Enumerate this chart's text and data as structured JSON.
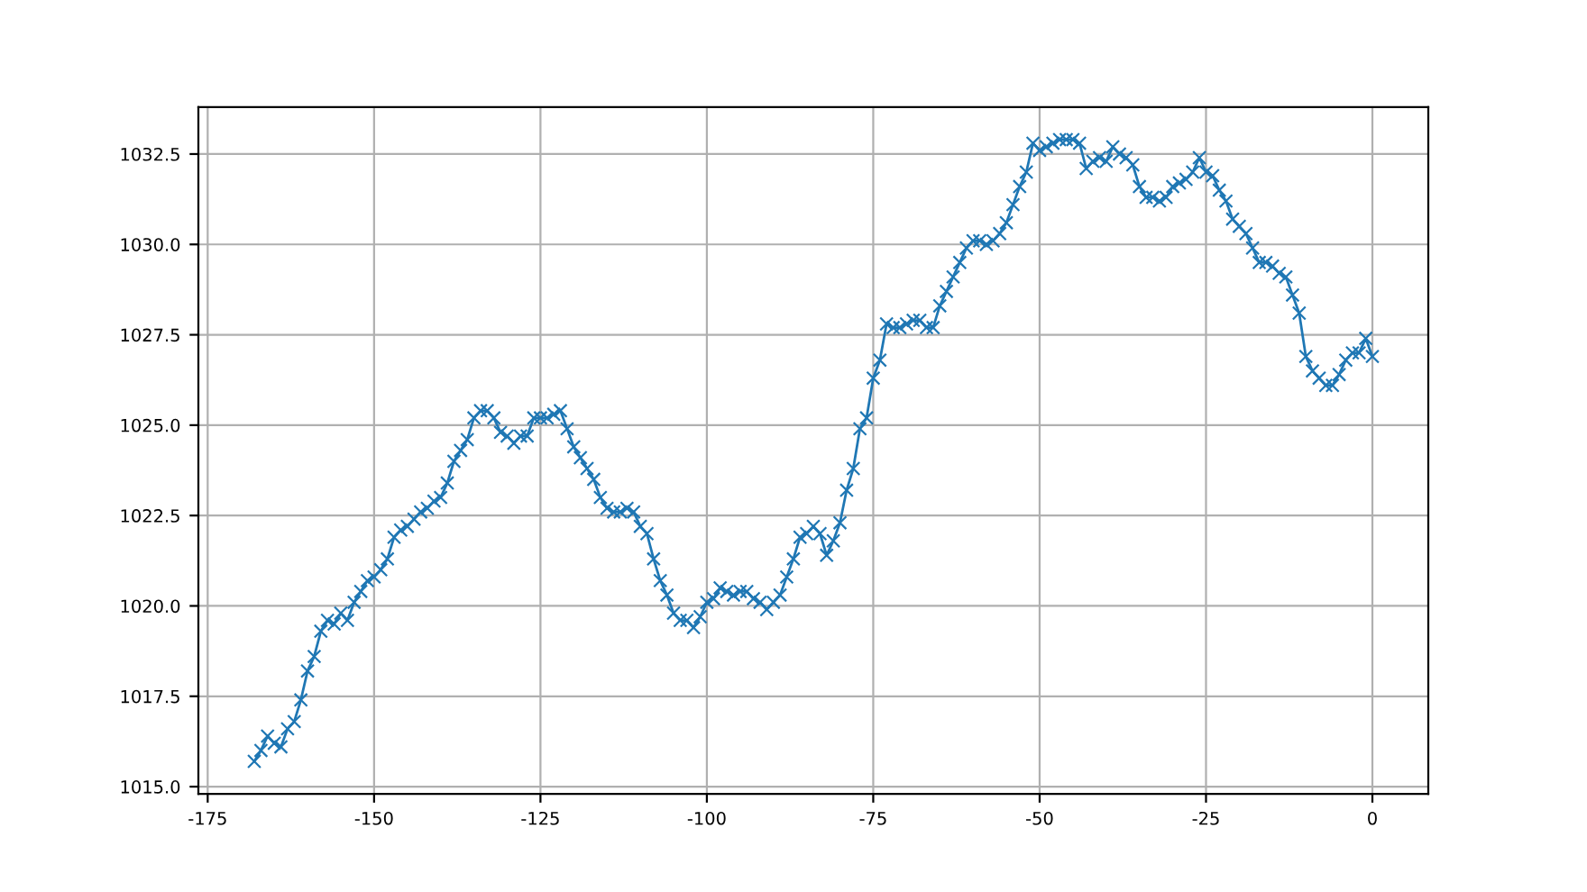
{
  "chart_data": {
    "type": "line",
    "marker": "cross",
    "grid": true,
    "x": [
      -168,
      -167,
      -166,
      -165,
      -164,
      -163,
      -162,
      -161,
      -160,
      -159,
      -158,
      -157,
      -156,
      -155,
      -154,
      -153,
      -152,
      -151,
      -150,
      -149,
      -148,
      -147,
      -146,
      -145,
      -144,
      -143,
      -142,
      -141,
      -140,
      -139,
      -138,
      -137,
      -136,
      -135,
      -134,
      -133,
      -132,
      -131,
      -130,
      -129,
      -128,
      -127,
      -126,
      -125,
      -124,
      -123,
      -122,
      -121,
      -120,
      -119,
      -118,
      -117,
      -116,
      -115,
      -114,
      -113,
      -112,
      -111,
      -110,
      -109,
      -108,
      -107,
      -106,
      -105,
      -104,
      -103,
      -102,
      -101,
      -100,
      -99,
      -98,
      -97,
      -96,
      -95,
      -94,
      -93,
      -92,
      -91,
      -90,
      -89,
      -88,
      -87,
      -86,
      -85,
      -84,
      -83,
      -82,
      -81,
      -80,
      -79,
      -78,
      -77,
      -76,
      -75,
      -74,
      -73,
      -72,
      -71,
      -70,
      -69,
      -68,
      -67,
      -66,
      -65,
      -64,
      -63,
      -62,
      -61,
      -60,
      -59,
      -58,
      -57,
      -56,
      -55,
      -54,
      -53,
      -52,
      -51,
      -50,
      -49,
      -48,
      -47,
      -46,
      -45,
      -44,
      -43,
      -42,
      -41,
      -40,
      -39,
      -38,
      -37,
      -36,
      -35,
      -34,
      -33,
      -32,
      -31,
      -30,
      -29,
      -28,
      -27,
      -26,
      -25,
      -24,
      -23,
      -22,
      -21,
      -20,
      -19,
      -18,
      -17,
      -16,
      -15,
      -14,
      -13,
      -12,
      -11,
      -10,
      -9,
      -8,
      -7,
      -6,
      -5,
      -4,
      -3,
      -2,
      -1,
      0
    ],
    "series": [
      {
        "color": "#1f77b4",
        "values": [
          1015.7,
          1016.0,
          1016.4,
          1016.2,
          1016.1,
          1016.6,
          1016.8,
          1017.4,
          1018.2,
          1018.6,
          1019.3,
          1019.6,
          1019.5,
          1019.8,
          1019.6,
          1020.1,
          1020.4,
          1020.7,
          1020.8,
          1021.0,
          1021.3,
          1021.9,
          1022.1,
          1022.2,
          1022.4,
          1022.6,
          1022.7,
          1022.9,
          1023.0,
          1023.4,
          1024.0,
          1024.3,
          1024.6,
          1025.2,
          1025.4,
          1025.4,
          1025.2,
          1024.8,
          1024.7,
          1024.5,
          1024.7,
          1024.7,
          1025.2,
          1025.2,
          1025.2,
          1025.3,
          1025.4,
          1024.9,
          1024.4,
          1024.1,
          1023.8,
          1023.5,
          1023.0,
          1022.7,
          1022.6,
          1022.6,
          1022.7,
          1022.6,
          1022.2,
          1022.0,
          1021.3,
          1020.7,
          1020.3,
          1019.8,
          1019.6,
          1019.6,
          1019.4,
          1019.7,
          1020.1,
          1020.2,
          1020.5,
          1020.4,
          1020.3,
          1020.4,
          1020.4,
          1020.2,
          1020.1,
          1019.9,
          1020.1,
          1020.3,
          1020.8,
          1021.3,
          1021.9,
          1022.0,
          1022.2,
          1022.0,
          1021.4,
          1021.8,
          1022.3,
          1023.2,
          1023.8,
          1024.9,
          1025.2,
          1026.3,
          1026.8,
          1027.8,
          1027.7,
          1027.7,
          1027.8,
          1027.9,
          1027.9,
          1027.7,
          1027.7,
          1028.3,
          1028.7,
          1029.1,
          1029.5,
          1029.9,
          1030.1,
          1030.1,
          1030.0,
          1030.1,
          1030.3,
          1030.6,
          1031.1,
          1031.6,
          1032.0,
          1032.8,
          1032.6,
          1032.7,
          1032.8,
          1032.9,
          1032.9,
          1032.9,
          1032.8,
          1032.1,
          1032.3,
          1032.4,
          1032.3,
          1032.7,
          1032.5,
          1032.4,
          1032.2,
          1031.6,
          1031.3,
          1031.3,
          1031.2,
          1031.3,
          1031.6,
          1031.7,
          1031.8,
          1032.0,
          1032.4,
          1032.0,
          1031.9,
          1031.5,
          1031.2,
          1030.7,
          1030.5,
          1030.3,
          1029.9,
          1029.5,
          1029.5,
          1029.4,
          1029.2,
          1029.1,
          1028.6,
          1028.1,
          1026.9,
          1026.5,
          1026.3,
          1026.1,
          1026.1,
          1026.4,
          1026.8,
          1027.0,
          1027.0,
          1027.4,
          1026.9
        ]
      }
    ],
    "xlim": [
      -176.4,
      8.4
    ],
    "ylim": [
      1014.8,
      1033.8
    ],
    "xticks": [
      -175,
      -150,
      -125,
      -100,
      -75,
      -50,
      -25,
      0
    ],
    "yticks": [
      {
        "value": 1015,
        "label": "1015.0"
      },
      {
        "value": 1017.5,
        "label": "1017.5"
      },
      {
        "value": 1020,
        "label": "1020.0"
      },
      {
        "value": 1022.5,
        "label": "1022.5"
      },
      {
        "value": 1025,
        "label": "1025.0"
      },
      {
        "value": 1027.5,
        "label": "1027.5"
      },
      {
        "value": 1030,
        "label": "1030.0"
      },
      {
        "value": 1032.5,
        "label": "1032.5"
      }
    ]
  }
}
